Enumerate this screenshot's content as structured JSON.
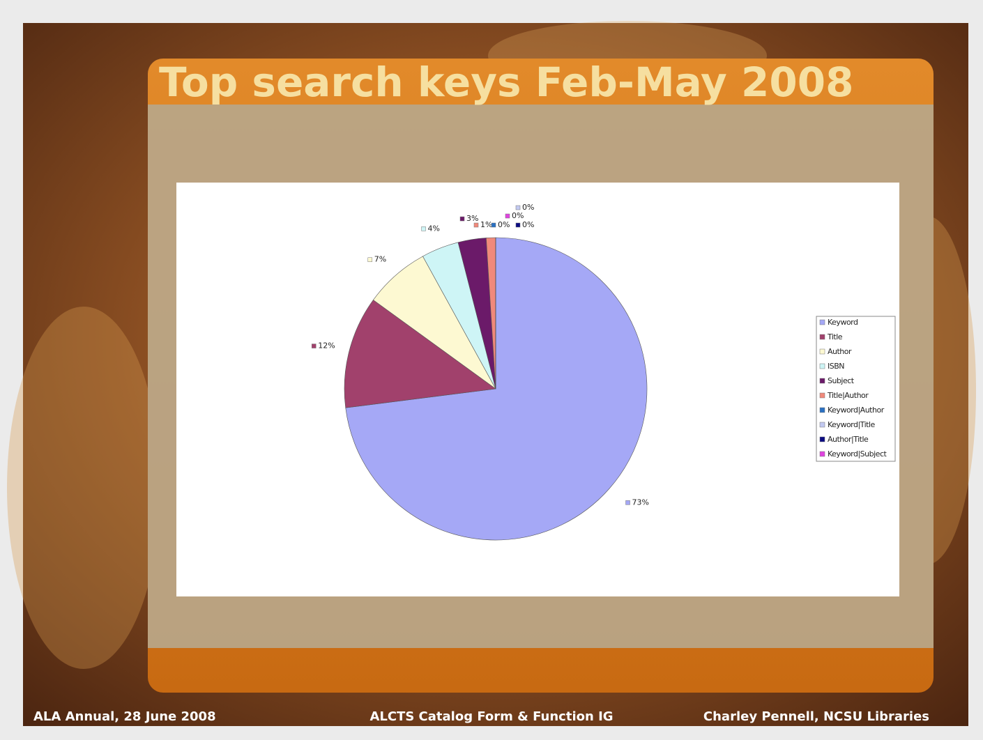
{
  "chart_data": {
    "type": "pie",
    "title": "Top search keys Feb-May 2008",
    "categories": [
      "Keyword",
      "Title",
      "Author",
      "ISBN",
      "Subject",
      "Title|Author",
      "Keyword|Author",
      "Keyword|Title",
      "Author|Title",
      "Keyword|Subject"
    ],
    "values": [
      73,
      12,
      7,
      4,
      3,
      1,
      0,
      0,
      0,
      0
    ],
    "value_labels": [
      "73%",
      "12%",
      "7%",
      "4%",
      "3%",
      "1%",
      "0%",
      "0%",
      "0%",
      "0%"
    ],
    "colors": [
      "#a5a8f6",
      "#a1416c",
      "#fdf9d2",
      "#cef5f6",
      "#6b1a69",
      "#f0897b",
      "#2a70c2",
      "#c2c9f1",
      "#0b0b82",
      "#e043e0"
    ],
    "legend": "right"
  },
  "slide": {
    "footer": [
      "ALA Annual, 28 June 2008",
      "ALCTS Catalog Form & Function IG",
      "Charley Pennell, NCSU Libraries"
    ]
  }
}
